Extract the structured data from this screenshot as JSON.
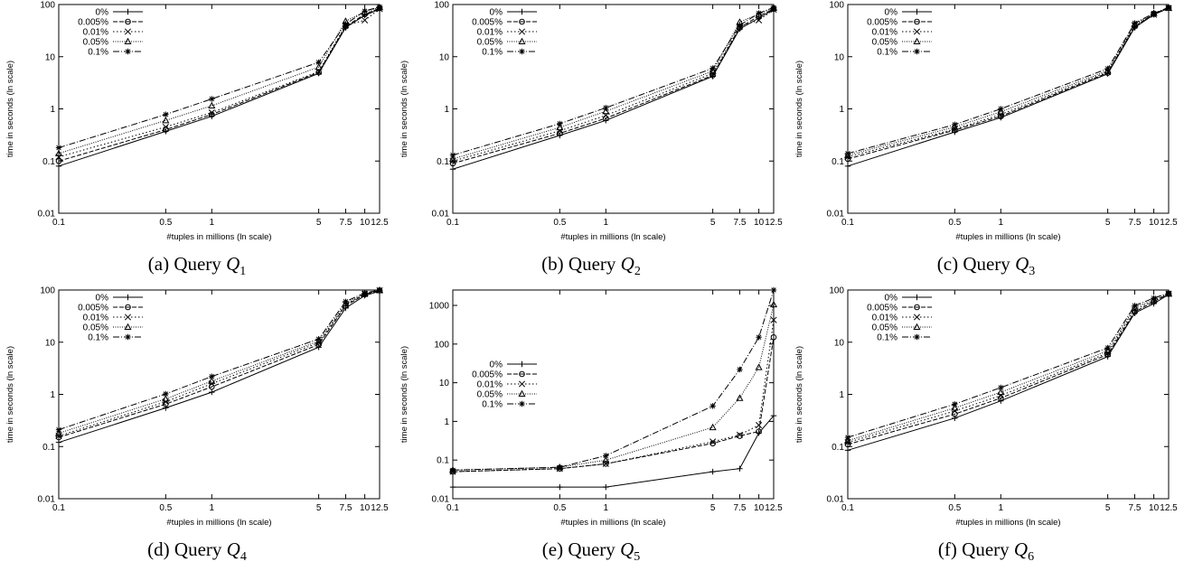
{
  "chart_data": [
    {
      "type": "line",
      "caption_prefix": "(a) Query ",
      "query_symbol": "Q",
      "query_index": "1",
      "xlabel": "#tuples in millions (ln scale)",
      "ylabel": "time in seconds (ln scale)",
      "x_scale": "log",
      "y_scale": "log",
      "xlim": [
        0.1,
        12.5
      ],
      "ylim": [
        0.01,
        100
      ],
      "x_ticks": [
        0.1,
        0.5,
        1,
        5,
        7.5,
        10,
        12.5
      ],
      "x_tick_labels": [
        "0.1",
        "0.5",
        "1",
        "5",
        "7.5",
        "10",
        "12.5"
      ],
      "y_ticks": [
        0.01,
        0.1,
        1,
        10,
        100
      ],
      "y_tick_labels": [
        "0.01",
        "0.1",
        "1",
        "10",
        "100"
      ],
      "legend_position": "top-left",
      "x": [
        0.1,
        0.5,
        1,
        5,
        7.5,
        10,
        12.5
      ],
      "series": [
        {
          "name": "0%",
          "values": [
            0.08,
            0.37,
            0.72,
            4.8,
            36,
            62,
            82
          ]
        },
        {
          "name": "0.005%",
          "values": [
            0.1,
            0.4,
            0.78,
            5.0,
            38,
            65,
            85
          ]
        },
        {
          "name": "0.01%",
          "values": [
            0.12,
            0.45,
            0.85,
            5.2,
            40,
            50,
            82
          ]
        },
        {
          "name": "0.05%",
          "values": [
            0.14,
            0.6,
            1.15,
            6.3,
            48,
            72,
            88
          ]
        },
        {
          "name": "0.1%",
          "values": [
            0.18,
            0.78,
            1.55,
            7.8,
            42,
            75,
            90
          ]
        }
      ]
    },
    {
      "type": "line",
      "caption_prefix": "(b) Query ",
      "query_symbol": "Q",
      "query_index": "2",
      "xlabel": "#tuples in millions (ln scale)",
      "ylabel": "time in seconds (ln scale)",
      "x_scale": "log",
      "y_scale": "log",
      "xlim": [
        0.1,
        12.5
      ],
      "ylim": [
        0.01,
        100
      ],
      "x_ticks": [
        0.1,
        0.5,
        1,
        5,
        7.5,
        10,
        12.5
      ],
      "x_tick_labels": [
        "0.1",
        "0.5",
        "1",
        "5",
        "7.5",
        "10",
        "12.5"
      ],
      "y_ticks": [
        0.01,
        0.1,
        1,
        10,
        100
      ],
      "y_tick_labels": [
        "0.01",
        "0.1",
        "1",
        "10",
        "100"
      ],
      "legend_position": "top-left",
      "x": [
        0.1,
        0.5,
        1,
        5,
        7.5,
        10,
        12.5
      ],
      "series": [
        {
          "name": "0%",
          "values": [
            0.07,
            0.31,
            0.6,
            4.2,
            34,
            55,
            80
          ]
        },
        {
          "name": "0.005%",
          "values": [
            0.09,
            0.34,
            0.66,
            4.4,
            36,
            60,
            82
          ]
        },
        {
          "name": "0.01%",
          "values": [
            0.1,
            0.38,
            0.75,
            4.8,
            38,
            50,
            80
          ]
        },
        {
          "name": "0.05%",
          "values": [
            0.11,
            0.44,
            0.9,
            5.3,
            46,
            66,
            86
          ]
        },
        {
          "name": "0.1%",
          "values": [
            0.13,
            0.52,
            1.05,
            6.0,
            40,
            68,
            88
          ]
        }
      ]
    },
    {
      "type": "line",
      "caption_prefix": "(c) Query ",
      "query_symbol": "Q",
      "query_index": "3",
      "xlabel": "#tuples in millions (ln scale)",
      "ylabel": "time in seconds (ln scale)",
      "x_scale": "log",
      "y_scale": "log",
      "xlim": [
        0.1,
        12.5
      ],
      "ylim": [
        0.01,
        100
      ],
      "x_ticks": [
        0.1,
        0.5,
        1,
        5,
        7.5,
        10,
        12.5
      ],
      "x_tick_labels": [
        "0.1",
        "0.5",
        "1",
        "5",
        "7.5",
        "10",
        "12.5"
      ],
      "y_ticks": [
        0.01,
        0.1,
        1,
        10,
        100
      ],
      "y_tick_labels": [
        "0.01",
        "0.1",
        "1",
        "10",
        "100"
      ],
      "legend_position": "top-left",
      "x": [
        0.1,
        0.5,
        1,
        5,
        7.5,
        10,
        12.5
      ],
      "series": [
        {
          "name": "0%",
          "values": [
            0.08,
            0.36,
            0.68,
            4.7,
            36,
            64,
            85
          ]
        },
        {
          "name": "0.005%",
          "values": [
            0.11,
            0.39,
            0.72,
            4.9,
            38,
            66,
            86
          ]
        },
        {
          "name": "0.01%",
          "values": [
            0.12,
            0.41,
            0.78,
            5.1,
            40,
            64,
            85
          ]
        },
        {
          "name": "0.05%",
          "values": [
            0.13,
            0.45,
            0.88,
            5.4,
            42,
            68,
            86
          ]
        },
        {
          "name": "0.1%",
          "values": [
            0.14,
            0.5,
            1.0,
            5.9,
            44,
            68,
            88
          ]
        }
      ]
    },
    {
      "type": "line",
      "caption_prefix": "(d) Query ",
      "query_symbol": "Q",
      "query_index": "4",
      "xlabel": "#tuples in millions (ln scale)",
      "ylabel": "time in seconds (ln scale)",
      "x_scale": "log",
      "y_scale": "log",
      "xlim": [
        0.1,
        12.5
      ],
      "ylim": [
        0.01,
        100
      ],
      "x_ticks": [
        0.1,
        0.5,
        1,
        5,
        7.5,
        10,
        12.5
      ],
      "x_tick_labels": [
        "0.1",
        "0.5",
        "1",
        "5",
        "7.5",
        "10",
        "12.5"
      ],
      "y_ticks": [
        0.01,
        0.1,
        1,
        10,
        100
      ],
      "y_tick_labels": [
        "0.01",
        "0.1",
        "1",
        "10",
        "100"
      ],
      "legend_position": "top-left",
      "x": [
        0.1,
        0.5,
        1,
        5,
        7.5,
        10,
        12.5
      ],
      "series": [
        {
          "name": "0%",
          "values": [
            0.12,
            0.55,
            1.1,
            8.0,
            45,
            78,
            95
          ]
        },
        {
          "name": "0.005%",
          "values": [
            0.15,
            0.65,
            1.4,
            9.0,
            50,
            82,
            98
          ]
        },
        {
          "name": "0.01%",
          "values": [
            0.16,
            0.72,
            1.6,
            9.8,
            52,
            84,
            98
          ]
        },
        {
          "name": "0.05%",
          "values": [
            0.18,
            0.82,
            1.8,
            10.5,
            55,
            85,
            99
          ]
        },
        {
          "name": "0.1%",
          "values": [
            0.21,
            1.02,
            2.2,
            11.5,
            60,
            88,
            100
          ]
        }
      ]
    },
    {
      "type": "line",
      "caption_prefix": "(e) Query ",
      "query_symbol": "Q",
      "query_index": "5",
      "xlabel": "#tuples in millions (ln scale)",
      "ylabel": "time in seconds (ln scale)",
      "x_scale": "log",
      "y_scale": "log",
      "xlim": [
        0.1,
        12.5
      ],
      "ylim": [
        0.01,
        2500
      ],
      "x_ticks": [
        0.1,
        0.5,
        1,
        5,
        7.5,
        10,
        12.5
      ],
      "x_tick_labels": [
        "0.1",
        "0.5",
        "1",
        "5",
        "7.5",
        "10",
        "12.5"
      ],
      "y_ticks": [
        0.01,
        0.1,
        1,
        10,
        100,
        1000
      ],
      "y_tick_labels": [
        "0.01",
        "0.1",
        "1",
        "10",
        "100",
        "1000"
      ],
      "legend_position": "left",
      "x": [
        0.1,
        0.5,
        1,
        5,
        7.5,
        10,
        12.5
      ],
      "series": [
        {
          "name": "0%",
          "values": [
            0.02,
            0.02,
            0.02,
            0.05,
            0.06,
            0.5,
            1.4
          ]
        },
        {
          "name": "0.005%",
          "values": [
            0.05,
            0.06,
            0.08,
            0.27,
            0.42,
            0.55,
            150
          ]
        },
        {
          "name": "0.01%",
          "values": [
            0.05,
            0.06,
            0.08,
            0.3,
            0.45,
            0.8,
            420
          ]
        },
        {
          "name": "0.05%",
          "values": [
            0.055,
            0.065,
            0.1,
            0.7,
            4.0,
            25,
            1050
          ]
        },
        {
          "name": "0.1%",
          "values": [
            0.055,
            0.065,
            0.13,
            2.5,
            22,
            150,
            2500
          ]
        }
      ]
    },
    {
      "type": "line",
      "caption_prefix": "(f) Query ",
      "query_symbol": "Q",
      "query_index": "6",
      "xlabel": "#tuples in millions (ln scale)",
      "ylabel": "time in seconds (ln scale)",
      "x_scale": "log",
      "y_scale": "log",
      "xlim": [
        0.1,
        12.5
      ],
      "ylim": [
        0.01,
        100
      ],
      "x_ticks": [
        0.1,
        0.5,
        1,
        5,
        7.5,
        10,
        12.5
      ],
      "x_tick_labels": [
        "0.1",
        "0.5",
        "1",
        "5",
        "7.5",
        "10",
        "12.5"
      ],
      "y_ticks": [
        0.01,
        0.1,
        1,
        10,
        100
      ],
      "y_tick_labels": [
        "0.01",
        "0.1",
        "1",
        "10",
        "100"
      ],
      "legend_position": "top-left",
      "x": [
        0.1,
        0.5,
        1,
        5,
        7.5,
        10,
        12.5
      ],
      "series": [
        {
          "name": "0%",
          "values": [
            0.085,
            0.35,
            0.75,
            5.3,
            36,
            55,
            82
          ]
        },
        {
          "name": "0.005%",
          "values": [
            0.11,
            0.42,
            0.85,
            5.8,
            38,
            60,
            84
          ]
        },
        {
          "name": "0.01%",
          "values": [
            0.12,
            0.48,
            0.95,
            6.2,
            42,
            62,
            84
          ]
        },
        {
          "name": "0.05%",
          "values": [
            0.13,
            0.55,
            1.1,
            6.8,
            46,
            65,
            86
          ]
        },
        {
          "name": "0.1%",
          "values": [
            0.15,
            0.65,
            1.35,
            7.8,
            50,
            70,
            88
          ]
        }
      ]
    }
  ]
}
